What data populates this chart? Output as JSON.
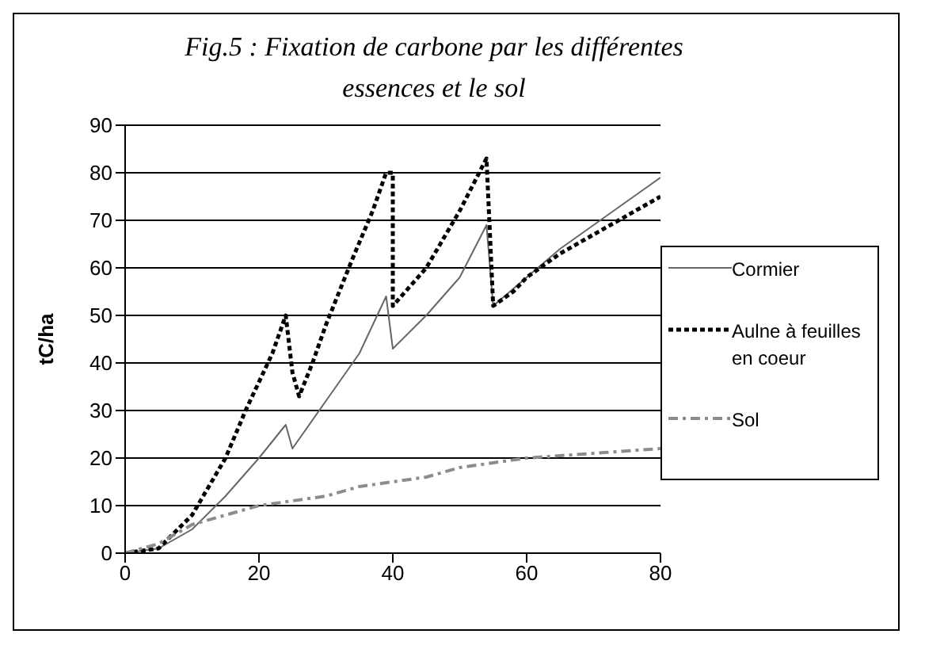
{
  "chart_data": {
    "type": "line",
    "title": "Fig.5 : Fixation de carbone par les différentes essences et le sol",
    "ylabel": "tC/ha",
    "xlim": [
      0,
      80
    ],
    "xticks": [
      0,
      20,
      40,
      60,
      80
    ],
    "ylim": [
      0,
      90
    ],
    "yticks": [
      0,
      10,
      20,
      30,
      40,
      50,
      60,
      70,
      80,
      90
    ],
    "grid": "y",
    "legend": "right",
    "marker": "none",
    "series": [
      {
        "name": "Cormier",
        "color": "#666666",
        "line_style": "solid",
        "x": [
          0,
          5,
          10,
          15,
          20,
          24,
          25,
          30,
          35,
          39,
          40,
          45,
          50,
          54,
          55,
          60,
          65,
          70,
          75,
          80
        ],
        "values": [
          0,
          1,
          5,
          12,
          20,
          27,
          22,
          32,
          42,
          54,
          43,
          50,
          58,
          69,
          52,
          58,
          64,
          69,
          74,
          79
        ]
      },
      {
        "name": "Aulne à feuilles en coeur",
        "color": "#000000",
        "line_style": "dotted",
        "x": [
          0,
          5,
          10,
          15,
          18,
          22,
          24,
          25,
          26,
          28,
          30,
          34,
          37,
          39,
          40,
          40,
          45,
          50,
          54,
          55,
          58,
          60,
          65,
          70,
          75,
          80
        ],
        "values": [
          0,
          1,
          8,
          20,
          30,
          42,
          50,
          38,
          33,
          40,
          48,
          62,
          72,
          80,
          80,
          52,
          60,
          72,
          83,
          52,
          55,
          58,
          63,
          67,
          71,
          75
        ]
      },
      {
        "name": "Sol",
        "color": "#8c8c8c",
        "line_style": "dashed",
        "x": [
          0,
          5,
          10,
          15,
          20,
          25,
          30,
          35,
          40,
          45,
          50,
          55,
          60,
          65,
          70,
          75,
          80
        ],
        "values": [
          0,
          2,
          6,
          8,
          10,
          11,
          12,
          14,
          15,
          16,
          18,
          19,
          20,
          20.5,
          21,
          21.5,
          22
        ]
      }
    ]
  }
}
